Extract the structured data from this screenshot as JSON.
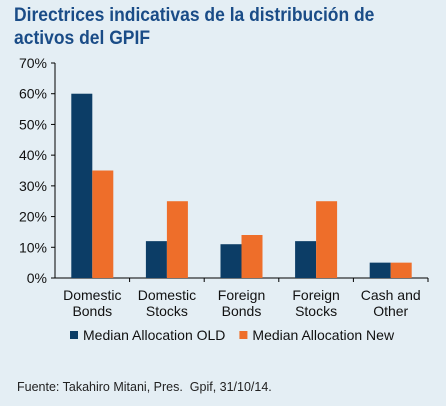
{
  "title": "Directrices indicativas de la distribución de activos del GPIF",
  "source": "Fuente: Takahiro Mitani, Pres.  Gpif, 31/10/14.",
  "chart_data": {
    "type": "bar",
    "title": "Directrices indicativas de la distribución de activos del GPIF",
    "categories": [
      [
        "Domestic",
        "Bonds"
      ],
      [
        "Domestic",
        "Stocks"
      ],
      [
        "Foreign",
        "Bonds"
      ],
      [
        "Foreign",
        "Stocks"
      ],
      [
        "Cash and",
        "Other"
      ]
    ],
    "series": [
      {
        "name": "Median Allocation OLD",
        "color": "#0c3d66",
        "values": [
          60,
          12,
          11,
          12,
          5
        ]
      },
      {
        "name": "Median Allocation New",
        "color": "#ee6e2a",
        "values": [
          35,
          25,
          14,
          25,
          5
        ]
      }
    ],
    "ylim": [
      0,
      70
    ],
    "yticks": [
      0,
      10,
      20,
      30,
      40,
      50,
      60,
      70
    ],
    "ytick_format": "%",
    "grid": false,
    "legend_position": "bottom",
    "xlabel": "",
    "ylabel": ""
  }
}
